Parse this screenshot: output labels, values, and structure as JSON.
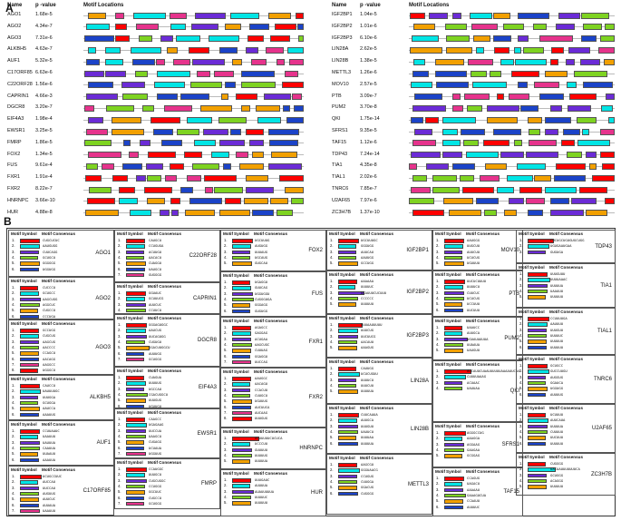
{
  "panel_a": {
    "letter": "A",
    "header": {
      "name": "Name",
      "pvalue": "p -value",
      "motif": "Motif Locations"
    },
    "colors": [
      "#ff0000",
      "#00e5e5",
      "#6b2bd6",
      "#7ed321",
      "#f2a000",
      "#1b43c8",
      "#e6338c"
    ],
    "left": [
      {
        "name": "AGO1",
        "p": "1.68e-5"
      },
      {
        "name": "AGO2",
        "p": "4.34e-7"
      },
      {
        "name": "AGO3",
        "p": "7.31e-6"
      },
      {
        "name": "ALKBH5",
        "p": "4.63e-7"
      },
      {
        "name": "AUF1",
        "p": "5.32e-5"
      },
      {
        "name": "C17ORF85",
        "p": "6.63e-6"
      },
      {
        "name": "C22ORF28",
        "p": "1.56e-6"
      },
      {
        "name": "CAPRIN1",
        "p": "4.66e-3"
      },
      {
        "name": "DGCR8",
        "p": "3.20e-7"
      },
      {
        "name": "EIF4A3",
        "p": "1.98e-4"
      },
      {
        "name": "EWSR1",
        "p": "3.25e-5"
      },
      {
        "name": "FMRP",
        "p": "1.86e-5"
      },
      {
        "name": "FOX2",
        "p": "1.34e-5"
      },
      {
        "name": "FUS",
        "p": "9.61e-4"
      },
      {
        "name": "FXR1",
        "p": "1.91e-4"
      },
      {
        "name": "FXR2",
        "p": "8.22e-7"
      },
      {
        "name": "HNRNPC",
        "p": "3.66e-10"
      },
      {
        "name": "HUR",
        "p": "4.88e-8"
      }
    ],
    "right": [
      {
        "name": "IGF2BP1",
        "p": "1.04e-5"
      },
      {
        "name": "IGF2BP2",
        "p": "1.01e-6"
      },
      {
        "name": "IGF2BP3",
        "p": "6.10e-6"
      },
      {
        "name": "LIN28A",
        "p": "2.62e-5"
      },
      {
        "name": "LIN28B",
        "p": "1.38e-5"
      },
      {
        "name": "METTL3",
        "p": "1.26e-6"
      },
      {
        "name": "MOV10",
        "p": "2.57e-5"
      },
      {
        "name": "PTB",
        "p": "3.09e-7"
      },
      {
        "name": "PUM2",
        "p": "3.70e-8"
      },
      {
        "name": "QKI",
        "p": "1.75e-14"
      },
      {
        "name": "SFRS1",
        "p": "9.35e-5"
      },
      {
        "name": "TAF15",
        "p": "1.12e-6"
      },
      {
        "name": "TDP43",
        "p": "7.24e-14"
      },
      {
        "name": "TIA1",
        "p": "4.35e-8"
      },
      {
        "name": "TIAL1",
        "p": "2.02e-6"
      },
      {
        "name": "TNRC6",
        "p": "7.85e-7"
      },
      {
        "name": "U2AF65",
        "p": "7.97e-6"
      },
      {
        "name": "ZC3H7B",
        "p": "1.37e-10"
      }
    ]
  },
  "panel_b": {
    "letter": "B",
    "col_motif": "Motif",
    "col_symbol": "Symbol",
    "col_consensus": "Motif Consensus",
    "colors": [
      "#ff0000",
      "#00e5e5",
      "#6b2bd6",
      "#7ed321",
      "#f2a000",
      "#1b43c8",
      "#e6338c"
    ],
    "boxes": [
      {
        "protein": "AGO1",
        "motifs": [
          "CUGCUCUC",
          "AAUGUGG",
          "CUUCAGG",
          "GCUGCU",
          "GGGGGG",
          "UGGUGG"
        ]
      },
      {
        "protein": "AGO2",
        "motifs": [
          "CUCCCU",
          "GCUGCC",
          "AAGCUGG",
          "AGGCUC",
          "CUGCCU",
          "CCCUGA"
        ]
      },
      {
        "protein": "AGO3",
        "motifs": [
          "GCCUGG",
          "CUGCUG",
          "AAGCUG",
          "AACCCC",
          "CCAGCU",
          "AACAGG",
          "AAGGCC",
          "UGGGCU"
        ]
      },
      {
        "protein": "ALKBH5",
        "motifs": [
          "CAUCCU",
          "UAUUUUGC",
          "UUUGGA",
          "GCUGGA",
          "AAUCCA",
          "AAAUUG"
        ]
      },
      {
        "protein": "AUF1",
        "motifs": [
          "CCUUAAUC",
          "UAAUUU",
          "UAUUUA",
          "CAAUUA",
          "UUAAUU",
          "AAAUUA"
        ]
      },
      {
        "protein": "C17ORF85",
        "motifs": [
          "UCUGCCUUC",
          "AUCCAU",
          "UUCCAU",
          "AUGUUG",
          "AUUCUC",
          "AUUAUA",
          "UAAUUU"
        ]
      },
      {
        "protein": "C22ORF28",
        "motifs": [
          "CAUGCU",
          "CCUGUGA",
          "ACUUGU",
          "AACACU",
          "CUAGGU",
          "UAUGCU",
          "GUGGGG"
        ]
      },
      {
        "protein": "CAPRIN1",
        "motifs": [
          "GGUAUC",
          "GCUUUCG",
          "AUUCUC",
          "CCUUCU"
        ]
      },
      {
        "protein": "DGCR8",
        "motifs": [
          "GGGAGUGGC",
          "AAUCUG",
          "UUCAGUGG",
          "CUGUGU",
          "GGACUUGGCU",
          "AUUUGG",
          "GCUGGG"
        ]
      },
      {
        "protein": "EIF4A3",
        "motifs": [
          "CUAGUA",
          "UUUUUG",
          "UGCCAU",
          "CGACUGGCU",
          "UUUGUG",
          "UGUUGU"
        ]
      },
      {
        "protein": "EWSR1",
        "motifs": [
          "CAAGCC",
          "UGAGAAG",
          "UUCCUA",
          "UAAGCU",
          "CUGAGG",
          "UCUAUA",
          "UGGUUG"
        ]
      },
      {
        "protein": "FMRP",
        "motifs": [
          "CCAUGGC",
          "UUUGCU",
          "CUGCUGGC",
          "CCUGGG",
          "GGCUUC",
          "CUGCCU",
          "GCUGGG"
        ]
      },
      {
        "protein": "FOX2",
        "motifs": [
          "UGCUUUG",
          "AUGUGG",
          "UUUAUG",
          "UGCAUG",
          "GUGCAU"
        ]
      },
      {
        "protein": "FUS",
        "motifs": [
          "UGAGGU",
          "GUUCAG",
          "UGGUGGU",
          "CUGGGUGA",
          "GGGAGG",
          "GUGUGG"
        ]
      },
      {
        "protein": "FXR1",
        "motifs": [
          "AGAGCC",
          "GAGGAG",
          "ACUGAA",
          "AAGCUGC",
          "CUUUAG",
          "GGAGGU",
          "UUCCAG"
        ]
      },
      {
        "protein": "FXR2",
        "motifs": [
          "AAUGGC",
          "AACAGU",
          "CCACUU",
          "CUUGCU",
          "UGUUUG",
          "AUCUUCA",
          "AUCAAG",
          "UUUGUG"
        ]
      },
      {
        "protein": "HNRNPC",
        "motifs": [
          "ACUUUUUCUCUCA",
          "UCCCUU",
          "GUUUUU",
          "UUUUUG",
          "UUUUUA"
        ]
      },
      {
        "protein": "HUR",
        "motifs": [
          "UUUGAUC",
          "AUUUUA",
          "AUAUUUUUA",
          "UUUUUC",
          "UUUUUU"
        ]
      },
      {
        "protein": "IGF2BP1",
        "motifs": [
          "UGCUUUGC",
          "GGGUGG",
          "AUUCAU",
          "AAUUGG",
          "GCCUGG"
        ]
      },
      {
        "protein": "IGF2BP2",
        "motifs": [
          "AAAAAA",
          "UUUUUC",
          "UCAUUUCUCUUU",
          "CCCCCC",
          "UUUUUU"
        ]
      },
      {
        "protein": "IGF2BP3",
        "motifs": [
          "UUUAAUUUUU",
          "UUUCUG",
          "UUCUUCG",
          "AACAUU",
          "AAAGUG"
        ]
      },
      {
        "protein": "LIN28A",
        "motifs": [
          "CAUUGG",
          "UCUCUGUU",
          "UUUUCU",
          "UUUCUU",
          "UUUUUA"
        ]
      },
      {
        "protein": "LIN28B",
        "motifs": [
          "CUUCAAUA",
          "AUUGCA",
          "UUUGUU",
          "UAUUCU",
          "UUUUAA",
          "UUUUUA"
        ]
      },
      {
        "protein": "METTL3",
        "motifs": [
          "AAGCGU",
          "GGGUAACG",
          "CCUGUG",
          "CUUGGA",
          "GGACUG",
          "CUGGGG"
        ]
      },
      {
        "protein": "MOV10",
        "motifs": [
          "AAUGGG",
          "UUGCUU",
          "AUUCUU",
          "UCUCUG",
          "UGUUUU"
        ]
      },
      {
        "protein": "PTB",
        "motifs": [
          "UUCUCUUUU",
          "UUUUCU",
          "CUUCUC",
          "UCUCUG",
          "UCCUUU",
          "UUCUUU"
        ]
      },
      {
        "protein": "PUM2",
        "motifs": [
          "UAAUCC",
          "AUUGCA",
          "UGUAUAUUUA",
          "UUAAUA",
          "UAUGUU"
        ]
      },
      {
        "protein": "QKI",
        "motifs": [
          "AUCAUUCUAAUUUUUUAAAAUUCUA",
          "CUUUUAAAG",
          "ACUAAC",
          "UAUUAA"
        ]
      },
      {
        "protein": "SFRS1",
        "motifs": [
          "AGGGCCUG",
          "AAAGGA",
          "AGGAAG",
          "GAAGAA",
          "GCGGAG"
        ]
      },
      {
        "protein": "TAF15",
        "motifs": [
          "CCAGUG",
          "UAGACU",
          "AAAAAU",
          "GAAAGUCUA",
          "CCAAUU",
          "AUUUUC"
        ]
      },
      {
        "protein": "TDP43",
        "motifs": [
          "CUCUGCUGUGUGCUGG",
          "UGUGAAUGAA",
          "GUGUGA"
        ]
      },
      {
        "protein": "TIA1",
        "motifs": [
          "UUUGUUU",
          "UUUUAAAC",
          "UUUUUA",
          "UAAUUU",
          "UUUUUU"
        ]
      },
      {
        "protein": "TIAL1",
        "motifs": [
          "CCUUUUGA",
          "AAUUUU",
          "UUUGUU",
          "UUUUUC",
          "UUUUUU",
          "UUUUUU"
        ]
      },
      {
        "protein": "TNRC6",
        "motifs": [
          "GCUGCC",
          "GUCCUUGU",
          "AUGGUG",
          "GGAUCA",
          "UGGUGG",
          "AUUUUG"
        ]
      },
      {
        "protein": "U2AF65",
        "motifs": [
          "UCUUUU",
          "AUUCAUA",
          "UUUUUA",
          "CUUUUU",
          "UUCUUU",
          "UUUUUU"
        ]
      },
      {
        "protein": "ZC3H7B",
        "motifs": [
          "CUGGGG",
          "UACUAUUUUUUUCA",
          "GCUGGG",
          "ACAGGG",
          "UUUUUU"
        ]
      }
    ]
  }
}
